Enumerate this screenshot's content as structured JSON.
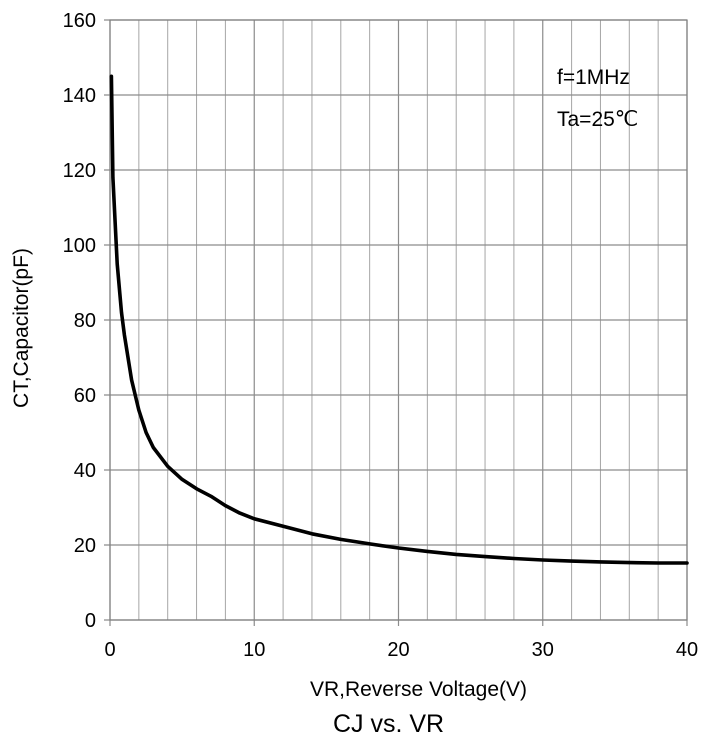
{
  "chart_data": {
    "type": "line",
    "title": "CJ vs. VR",
    "xlabel": "VR,Reverse Voltage(V)",
    "ylabel": "CT,Capacitor(pF)",
    "xlim": [
      0,
      40
    ],
    "ylim": [
      0,
      160
    ],
    "xticks": [
      0,
      10,
      20,
      30,
      40
    ],
    "yticks": [
      0,
      20,
      40,
      60,
      80,
      100,
      120,
      140,
      160
    ],
    "x_minor_step": 2,
    "y_minor_step": 20,
    "grid": true,
    "annotations": [
      "f=1MHz",
      "Ta=25℃"
    ],
    "series": [
      {
        "color": "#000000",
        "x": [
          0.1,
          0.2,
          0.5,
          0.8,
          1,
          1.5,
          2,
          2.5,
          3,
          4,
          5,
          6,
          7,
          8,
          9,
          10,
          12,
          14,
          16,
          18,
          20,
          22,
          24,
          26,
          28,
          30,
          32,
          34,
          36,
          38,
          40
        ],
        "y": [
          145,
          118,
          95,
          82,
          76,
          64,
          56,
          50,
          46,
          41,
          37.5,
          35,
          33,
          30.5,
          28.5,
          27,
          25,
          23,
          21.5,
          20.3,
          19.2,
          18.3,
          17.5,
          16.9,
          16.4,
          16,
          15.7,
          15.5,
          15.3,
          15.2,
          15.2
        ]
      }
    ]
  }
}
